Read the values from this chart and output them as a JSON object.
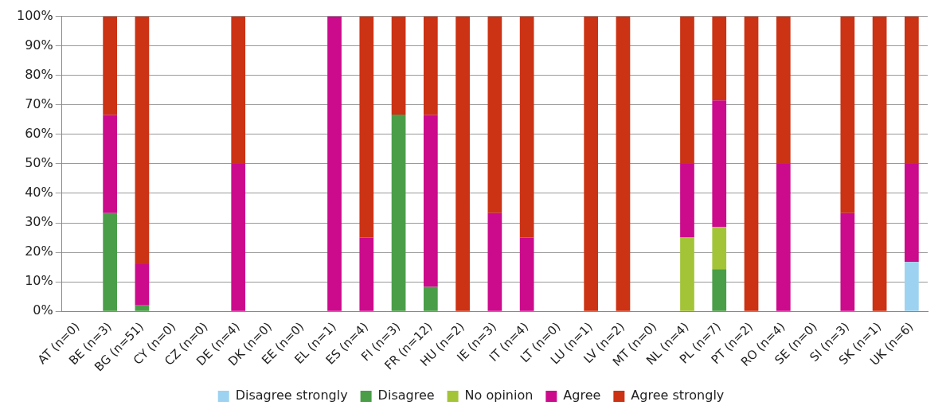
{
  "chart_data": {
    "type": "bar",
    "stacked": true,
    "categories": [
      "AT (n=0)",
      "BE (n=3)",
      "BG (n=51)",
      "CY (n=0)",
      "CZ (n=0)",
      "DE (n=4)",
      "DK (n=0)",
      "EE (n=0)",
      "EL (n=1)",
      "ES (n=4)",
      "FI (n=3)",
      "FR (n=12)",
      "HU (n=2)",
      "IE (n=3)",
      "IT (n=4)",
      "LT (n=0)",
      "LU (n=1)",
      "LV (n=2)",
      "MT (n=0)",
      "NL (n=4)",
      "PL (n=7)",
      "PT (n=2)",
      "RO (n=4)",
      "SE (n=0)",
      "SI (n=3)",
      "SK (n=1)",
      "UK (n=6)"
    ],
    "series": [
      {
        "name": "Disagree strongly",
        "color": "#9dd3f0",
        "values": [
          0,
          0,
          0,
          0,
          0,
          0,
          0,
          0,
          0,
          0,
          0,
          0,
          0,
          0,
          0,
          0,
          0,
          0,
          0,
          0,
          0,
          0,
          0,
          0,
          0,
          0,
          16.7
        ]
      },
      {
        "name": "Disagree",
        "color": "#4a9e48",
        "values": [
          0,
          33.3,
          2,
          0,
          0,
          0,
          0,
          0,
          0,
          0,
          66.7,
          8.3,
          0,
          0,
          0,
          0,
          0,
          0,
          0,
          0,
          14.3,
          0,
          0,
          0,
          0,
          0,
          0
        ]
      },
      {
        "name": "No opinion",
        "color": "#a4c438",
        "values": [
          0,
          0,
          0,
          0,
          0,
          0,
          0,
          0,
          0,
          0,
          0,
          0,
          0,
          0,
          0,
          0,
          0,
          0,
          0,
          25,
          14.3,
          0,
          0,
          0,
          0,
          0,
          0
        ]
      },
      {
        "name": "Agree",
        "color": "#cc0a8c",
        "values": [
          0,
          33.3,
          14,
          0,
          0,
          50,
          0,
          0,
          100,
          25,
          0,
          58.3,
          0,
          33.3,
          25,
          0,
          0,
          0,
          0,
          25,
          42.9,
          0,
          50,
          0,
          33.3,
          0,
          33.3
        ]
      },
      {
        "name": "Agree strongly",
        "color": "#cc3214",
        "values": [
          0,
          33.4,
          84,
          0,
          0,
          50,
          0,
          0,
          0,
          75,
          33.3,
          33.4,
          100,
          66.7,
          75,
          0,
          100,
          100,
          0,
          50,
          28.5,
          100,
          50,
          0,
          66.7,
          100,
          50
        ]
      }
    ],
    "ylim": [
      0,
      100
    ],
    "yticks": [
      {
        "value": 0,
        "label": "0%"
      },
      {
        "value": 10,
        "label": "10%"
      },
      {
        "value": 20,
        "label": "20%"
      },
      {
        "value": 30,
        "label": "30%"
      },
      {
        "value": 40,
        "label": "40%"
      },
      {
        "value": 50,
        "label": "50%"
      },
      {
        "value": 60,
        "label": "60%"
      },
      {
        "value": 70,
        "label": "70%"
      },
      {
        "value": 80,
        "label": "80%"
      },
      {
        "value": 90,
        "label": "90%"
      },
      {
        "value": 100,
        "label": "100%"
      }
    ],
    "grid": "y",
    "legend": "bottom"
  }
}
